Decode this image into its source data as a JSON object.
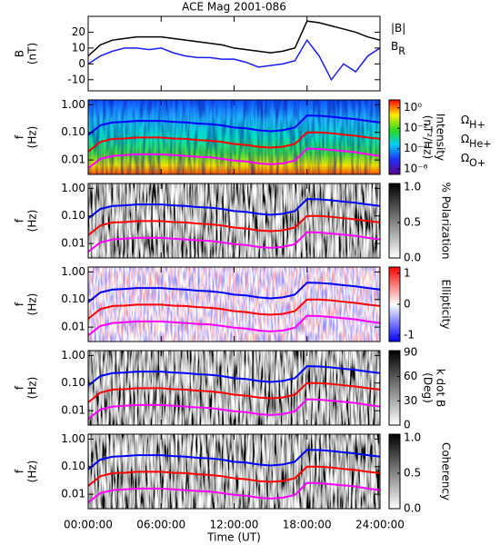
{
  "chart_data": [
    {
      "type": "line",
      "title": "ACE Mag 2001-086",
      "ylabel": "B",
      "yunit": "(nT)",
      "x": [
        0,
        1,
        2,
        3,
        4,
        5,
        6,
        7,
        8,
        9,
        10,
        11,
        12,
        13,
        14,
        15,
        16,
        17,
        18,
        19,
        20,
        21,
        22,
        23,
        24
      ],
      "xlim": [
        0,
        24
      ],
      "ylim": [
        -17,
        30
      ],
      "yticks": [
        -10,
        0,
        10,
        20
      ],
      "series": [
        {
          "name": "|B|",
          "color": "#000000",
          "values": [
            5,
            12,
            15,
            16,
            17,
            17,
            17,
            16,
            15,
            14,
            13,
            12,
            10,
            9,
            8,
            7,
            8,
            10,
            27,
            26,
            24,
            22,
            20,
            17,
            15
          ]
        },
        {
          "name": "B",
          "name_sub": "R",
          "color": "#1a1aff",
          "values": [
            0,
            5,
            8,
            10,
            10,
            9,
            10,
            7,
            5,
            4,
            4,
            3,
            3,
            1,
            -2,
            -1,
            0,
            2,
            15,
            5,
            -10,
            0,
            -5,
            5,
            10
          ]
        }
      ]
    },
    {
      "type": "spectrogram",
      "ylabel": "f",
      "yunit": "(Hz)",
      "log": true,
      "xlim": [
        0,
        24
      ],
      "ylim": [
        0.003,
        1.5
      ],
      "yticks": [
        0.01,
        {
          "value": 0.1,
          "label": "0.10"
        },
        {
          "value": 1,
          "label": "1.00"
        }
      ],
      "colormap": "rainbow",
      "colorbar": {
        "label": "Intensity",
        "unit": "(nT²/Hz)",
        "log": true,
        "lim": [
          3e-07,
          6
        ],
        "ticks": [
          {
            "value": 1,
            "label": "10⁰"
          },
          {
            "value": 0.01,
            "label": "10⁻²"
          },
          {
            "value": 0.0001,
            "label": "10⁻⁴"
          },
          {
            "value": 1e-06,
            "label": "10⁻⁶"
          }
        ]
      },
      "series": [
        {
          "name": "Ω",
          "name_sub": "H+",
          "color": "#0000ff",
          "values": [
            0.08,
            0.18,
            0.23,
            0.24,
            0.26,
            0.26,
            0.26,
            0.24,
            0.23,
            0.21,
            0.2,
            0.18,
            0.15,
            0.14,
            0.12,
            0.11,
            0.12,
            0.15,
            0.41,
            0.4,
            0.37,
            0.33,
            0.3,
            0.26,
            0.23
          ]
        },
        {
          "name": "Ω",
          "name_sub": "He+",
          "color": "#ff0000",
          "values": [
            0.02,
            0.045,
            0.058,
            0.06,
            0.065,
            0.065,
            0.065,
            0.06,
            0.058,
            0.053,
            0.05,
            0.045,
            0.038,
            0.035,
            0.03,
            0.028,
            0.03,
            0.038,
            0.1,
            0.1,
            0.093,
            0.083,
            0.075,
            0.065,
            0.058
          ]
        },
        {
          "name": "Ω",
          "name_sub": "O+",
          "color": "#ff00ff",
          "values": [
            0.005,
            0.011,
            0.014,
            0.015,
            0.016,
            0.016,
            0.016,
            0.015,
            0.014,
            0.013,
            0.0125,
            0.011,
            0.0095,
            0.0088,
            0.0075,
            0.007,
            0.0075,
            0.0095,
            0.026,
            0.025,
            0.023,
            0.021,
            0.019,
            0.016,
            0.014
          ]
        }
      ]
    },
    {
      "type": "spectrogram",
      "ylabel": "f",
      "yunit": "(Hz)",
      "log": true,
      "xlim": [
        0,
        24
      ],
      "ylim": [
        0.003,
        1.5
      ],
      "yticks": [
        0.01,
        {
          "value": 0.1,
          "label": "0.10"
        },
        {
          "value": 1,
          "label": "1.00"
        }
      ],
      "colormap": "gray",
      "colorbar": {
        "label": "% Polarization",
        "lim": [
          0,
          1.05
        ],
        "ticks": [
          {
            "value": 0,
            "label": "0.0"
          },
          0.5,
          {
            "value": 1,
            "label": "1.0"
          }
        ]
      }
    },
    {
      "type": "spectrogram",
      "ylabel": "f",
      "yunit": "(Hz)",
      "log": true,
      "xlim": [
        0,
        24
      ],
      "ylim": [
        0.003,
        1.5
      ],
      "yticks": [
        0.01,
        {
          "value": 0.1,
          "label": "0.10"
        },
        {
          "value": 1,
          "label": "1.00"
        }
      ],
      "colormap": "bwr",
      "colorbar": {
        "label": "Ellipticity",
        "lim": [
          -1.2,
          1.2
        ],
        "ticks": [
          -1,
          0,
          1
        ]
      }
    },
    {
      "type": "spectrogram",
      "ylabel": "f",
      "yunit": "(Hz)",
      "log": true,
      "xlim": [
        0,
        24
      ],
      "ylim": [
        0.003,
        1.5
      ],
      "yticks": [
        0.01,
        {
          "value": 0.1,
          "label": "0.10"
        },
        {
          "value": 1,
          "label": "1.00"
        }
      ],
      "colormap": "gray",
      "colorbar": {
        "label": "k dot B",
        "unit": "(Deg)",
        "lim": [
          0,
          92
        ],
        "ticks": [
          0,
          30,
          60,
          90
        ]
      }
    },
    {
      "type": "spectrogram",
      "ylabel": "f",
      "yunit": "(Hz)",
      "log": true,
      "xlim": [
        0,
        24
      ],
      "ylim": [
        0.003,
        1.5
      ],
      "yticks": [
        0.01,
        {
          "value": 0.1,
          "label": "0.10"
        },
        {
          "value": 1,
          "label": "1.00"
        }
      ],
      "colormap": "gray",
      "colorbar": {
        "label": "Coherency",
        "lim": [
          0,
          1.05
        ],
        "ticks": [
          {
            "value": 0,
            "label": "0.0"
          },
          0.5,
          {
            "value": 1,
            "label": "1.0"
          }
        ]
      },
      "xlabel": "Time (UT)",
      "xticks": [
        {
          "value": 0,
          "label": "00:00:00"
        },
        {
          "value": 6,
          "label": "06:00:00"
        },
        {
          "value": 12,
          "label": "12:00:00"
        },
        {
          "value": 18,
          "label": "18:00:00"
        },
        {
          "value": 24,
          "label": "24:00:00"
        }
      ]
    }
  ]
}
